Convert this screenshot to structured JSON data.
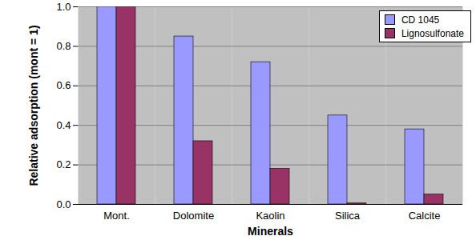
{
  "chart_data": {
    "type": "bar",
    "x_label": "Minerals",
    "y_label": "Relative adsorption (mont = 1)",
    "categories": [
      "Mont.",
      "Dolomite",
      "Kaolin",
      "Silica",
      "Calcite"
    ],
    "series": [
      {
        "name": "CD 1045",
        "color": "#9999FF",
        "values": [
          1.0,
          0.85,
          0.72,
          0.45,
          0.38
        ]
      },
      {
        "name": "Lignosulfonate",
        "color": "#993366",
        "values": [
          1.0,
          0.32,
          0.18,
          0.005,
          0.05
        ]
      }
    ],
    "ylim": [
      0,
      1
    ],
    "yticks": [
      {
        "value": 0,
        "label": "0.0"
      },
      0.2,
      0.4,
      0.6,
      0.8,
      {
        "value": 1,
        "label": "1.0"
      }
    ],
    "grid": true,
    "legend": "top-right"
  }
}
